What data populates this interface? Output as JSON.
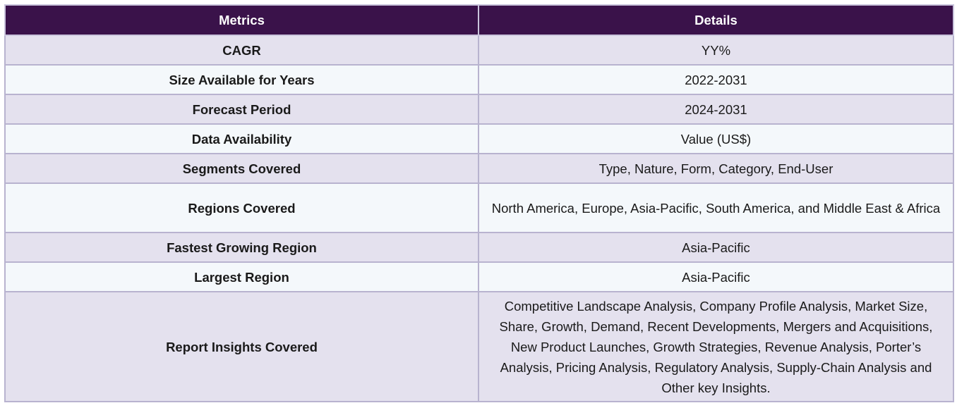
{
  "table": {
    "headers": [
      "Metrics",
      "Details"
    ],
    "rows": [
      {
        "metric": "CAGR",
        "detail": "YY%"
      },
      {
        "metric": "Size Available for Years",
        "detail": "2022-2031"
      },
      {
        "metric": "Forecast Period",
        "detail": "2024-2031"
      },
      {
        "metric": "Data Availability",
        "detail": "Value (US$)"
      },
      {
        "metric": "Segments Covered",
        "detail": "Type, Nature, Form, Category, End-User"
      },
      {
        "metric": "Regions Covered",
        "detail": "North America, Europe, Asia-Pacific, South America, and Middle East & Africa"
      },
      {
        "metric": "Fastest Growing Region",
        "detail": "Asia-Pacific"
      },
      {
        "metric": "Largest Region",
        "detail": "Asia-Pacific"
      },
      {
        "metric": "Report Insights Covered",
        "detail": "Competitive Landscape Analysis, Company Profile Analysis, Market Size, Share, Growth, Demand, Recent Developments, Mergers and Acquisitions, New Product Launches, Growth Strategies, Revenue Analysis, Porter’s Analysis, Pricing Analysis, Regulatory Analysis, Supply-Chain Analysis and Other key Insights."
      }
    ]
  },
  "colors": {
    "header_bg": "#3a124a",
    "row_odd_bg": "#e4e1ee",
    "row_even_bg": "#f4f8fb",
    "border": "#b8b3cf"
  }
}
